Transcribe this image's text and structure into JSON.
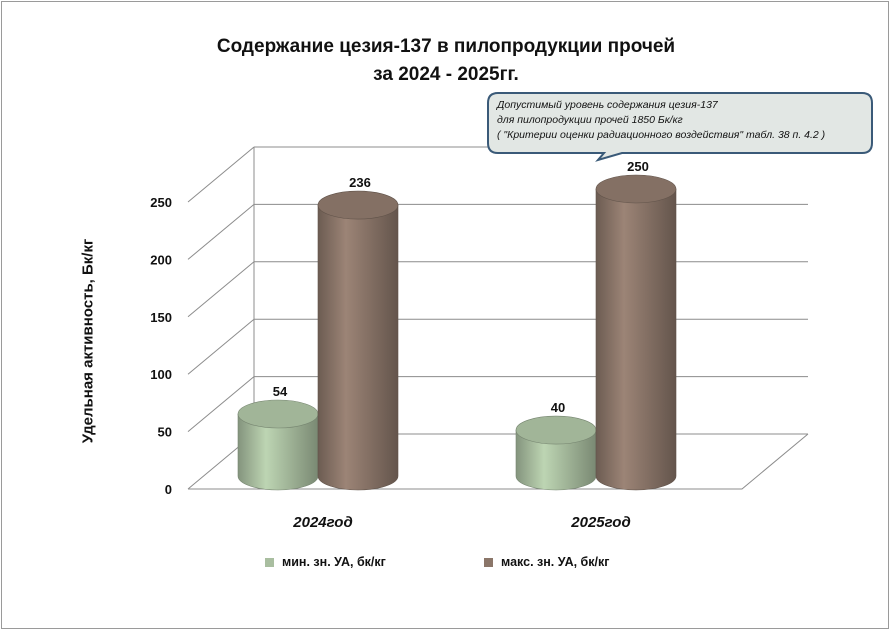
{
  "title": {
    "line1": "Содержание цезия-137 в пилопродукции прочей",
    "line2": "за 2024 - 2025гг."
  },
  "callout": {
    "line1": "Допустимый уровень содержания цезия-137",
    "line2": "для пилопродукции  прочей 1850 Бк/кг",
    "line3": "( \"Критерии оценки радиационного воздействия\" табл. 38 п. 4.2 )"
  },
  "colors": {
    "min_series": "#a9bea0",
    "max_series": "#8b7669",
    "callout_border": "#3a5a78",
    "callout_fill": "#e2e7e4"
  },
  "chart_data": {
    "type": "bar",
    "style": "3d-cylinder",
    "categories": [
      "2024год",
      "2025год"
    ],
    "series": [
      {
        "name": "мин. зн. УА, бк/кг",
        "values": [
          54,
          40
        ]
      },
      {
        "name": "макс. зн. УА, бк/кг",
        "values": [
          236,
          250
        ]
      }
    ],
    "data_labels": [
      [
        "54",
        "40"
      ],
      [
        "236",
        "250"
      ]
    ],
    "ylabel": "Удельная активность, Бк/кг",
    "xlabel": "",
    "ylim": [
      0,
      250
    ],
    "yticks": [
      "0",
      "50",
      "100",
      "150",
      "200",
      "250"
    ],
    "grid": true,
    "legend_position": "bottom"
  }
}
